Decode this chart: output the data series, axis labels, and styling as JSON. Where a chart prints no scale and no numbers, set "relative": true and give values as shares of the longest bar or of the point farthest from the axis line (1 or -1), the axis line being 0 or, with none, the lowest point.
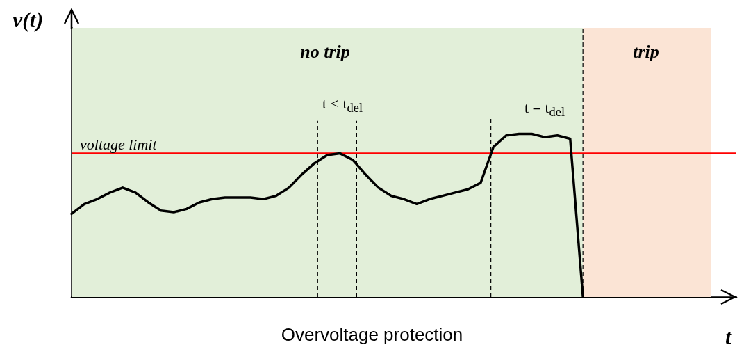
{
  "chart_data": {
    "type": "line",
    "title": "Overvoltage protection",
    "xlabel": "t",
    "ylabel": "v(t)",
    "relative": true,
    "marker": "none",
    "line_style": "solid",
    "categories": [
      null,
      null,
      null,
      null,
      null,
      null,
      null,
      null,
      null,
      null,
      null,
      null,
      null,
      null,
      null,
      null,
      null,
      null,
      null,
      null,
      null,
      null,
      null,
      null,
      null,
      null,
      null,
      null,
      null,
      null,
      null,
      null,
      null,
      null,
      null,
      null,
      null,
      null,
      null,
      null,
      null,
      null,
      null,
      null,
      null,
      null,
      null,
      null,
      null,
      null,
      null,
      null,
      null
    ],
    "series": [
      {
        "color": "#000000",
        "values": [
          0.51,
          0.57,
          0.6,
          0.64,
          0.67,
          0.64,
          0.58,
          0.53,
          0.52,
          0.54,
          0.58,
          0.6,
          0.61,
          0.61,
          0.61,
          0.6,
          0.62,
          0.67,
          0.75,
          0.82,
          0.87,
          0.88,
          0.84,
          0.75,
          0.67,
          0.62,
          0.6,
          0.57,
          0.6,
          0.62,
          0.64,
          0.66,
          0.7,
          0.92,
          0.99,
          1.0,
          1.0,
          0.98,
          0.99,
          0.97,
          0,
          null,
          null,
          null,
          null,
          null,
          null,
          null,
          null,
          null,
          null,
          null,
          null
        ]
      }
    ],
    "ref_lines": [
      {
        "axis": "y",
        "value": 0.88,
        "label": "voltage limit",
        "color": "#ff0000",
        "line_style": "solid"
      }
    ],
    "annotations": [
      "no trip",
      "trip",
      "t < t$_{del}$",
      "t = t$_{del}$"
    ]
  }
}
